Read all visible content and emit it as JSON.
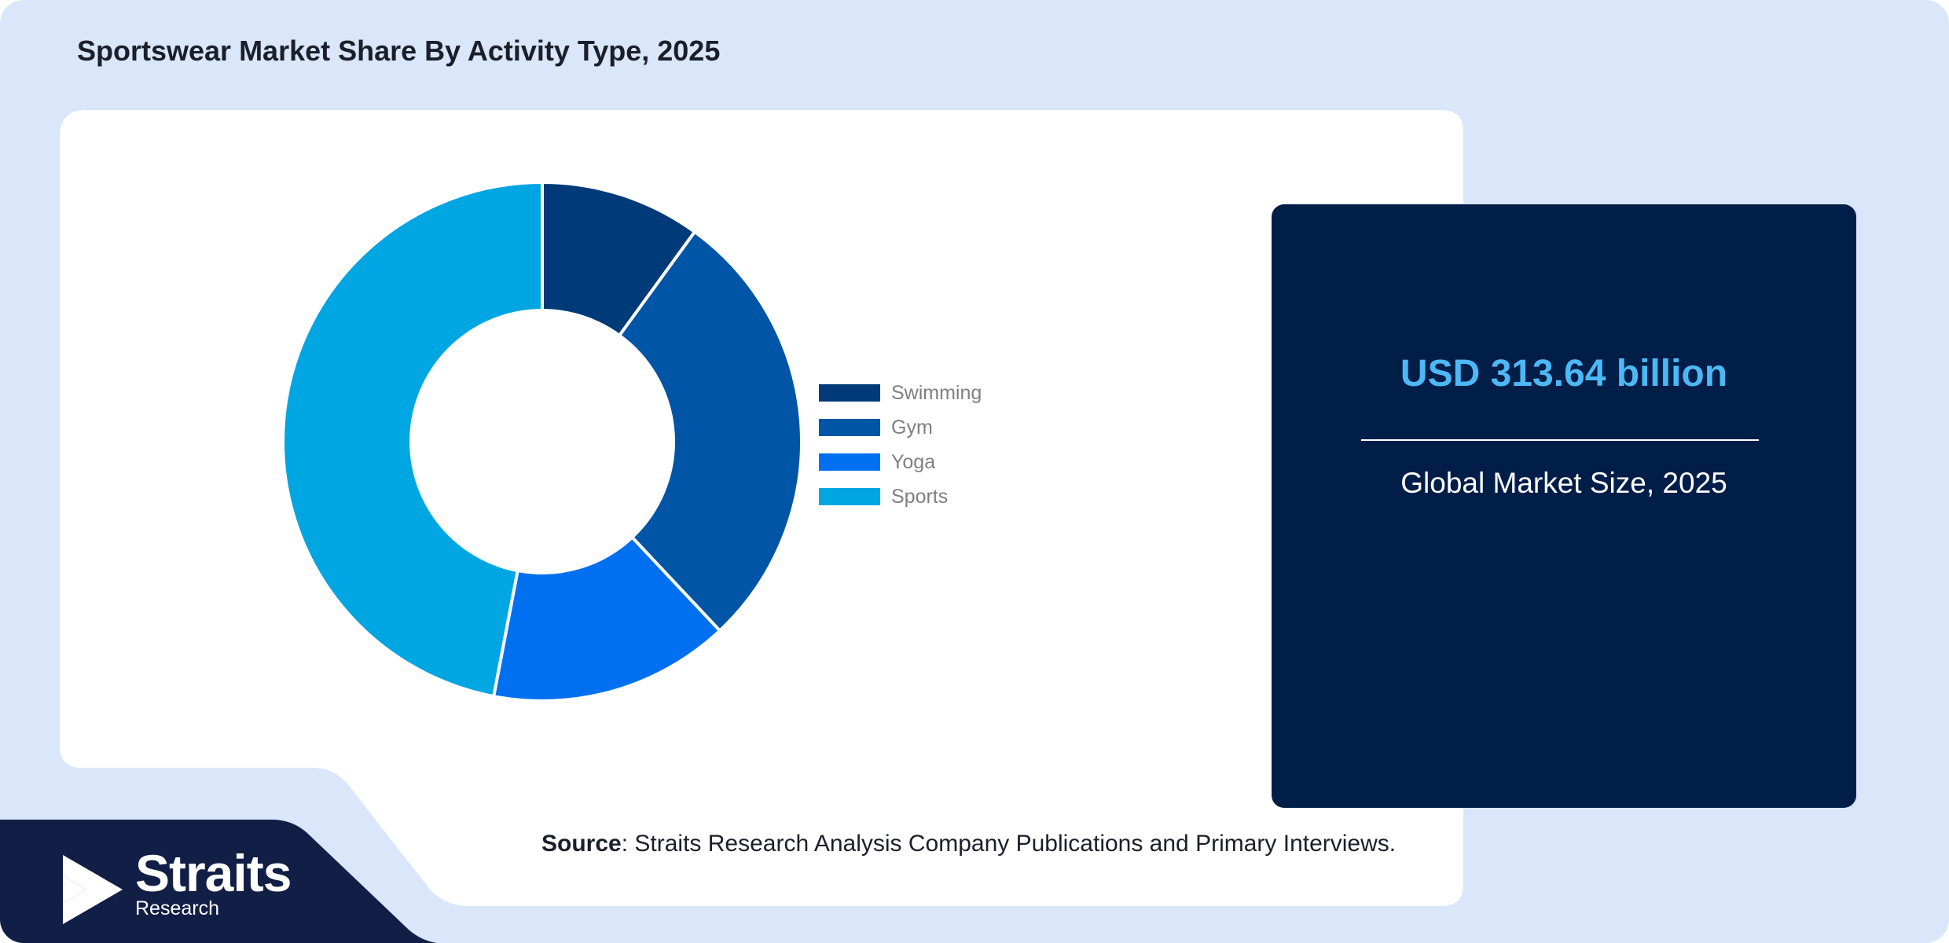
{
  "title": "Sportswear Market Share By Activity Type, 2025",
  "chart_data": {
    "type": "pie",
    "donut": true,
    "categories": [
      "Swimming",
      "Gym",
      "Yoga",
      "Sports"
    ],
    "values": [
      10,
      28,
      15,
      47
    ],
    "unit": "%",
    "colors": [
      "#003a78",
      "#0055a7",
      "#0070f0",
      "#00a6e2"
    ],
    "legend_placement": "right"
  },
  "market": {
    "value": "USD 313.64 billion",
    "label": "Global Market Size, 2025"
  },
  "source": {
    "label": "Source",
    "text": ": Straits Research Analysis Company Publications and Primary Interviews."
  },
  "logo": {
    "name": "Straits",
    "sub": "Research",
    "icon": "straits-arrow-logo-icon"
  },
  "colors": {
    "background": "#dae6f9",
    "card": "#001e48",
    "accent": "#4cb8f5",
    "footer": "#111e46"
  }
}
